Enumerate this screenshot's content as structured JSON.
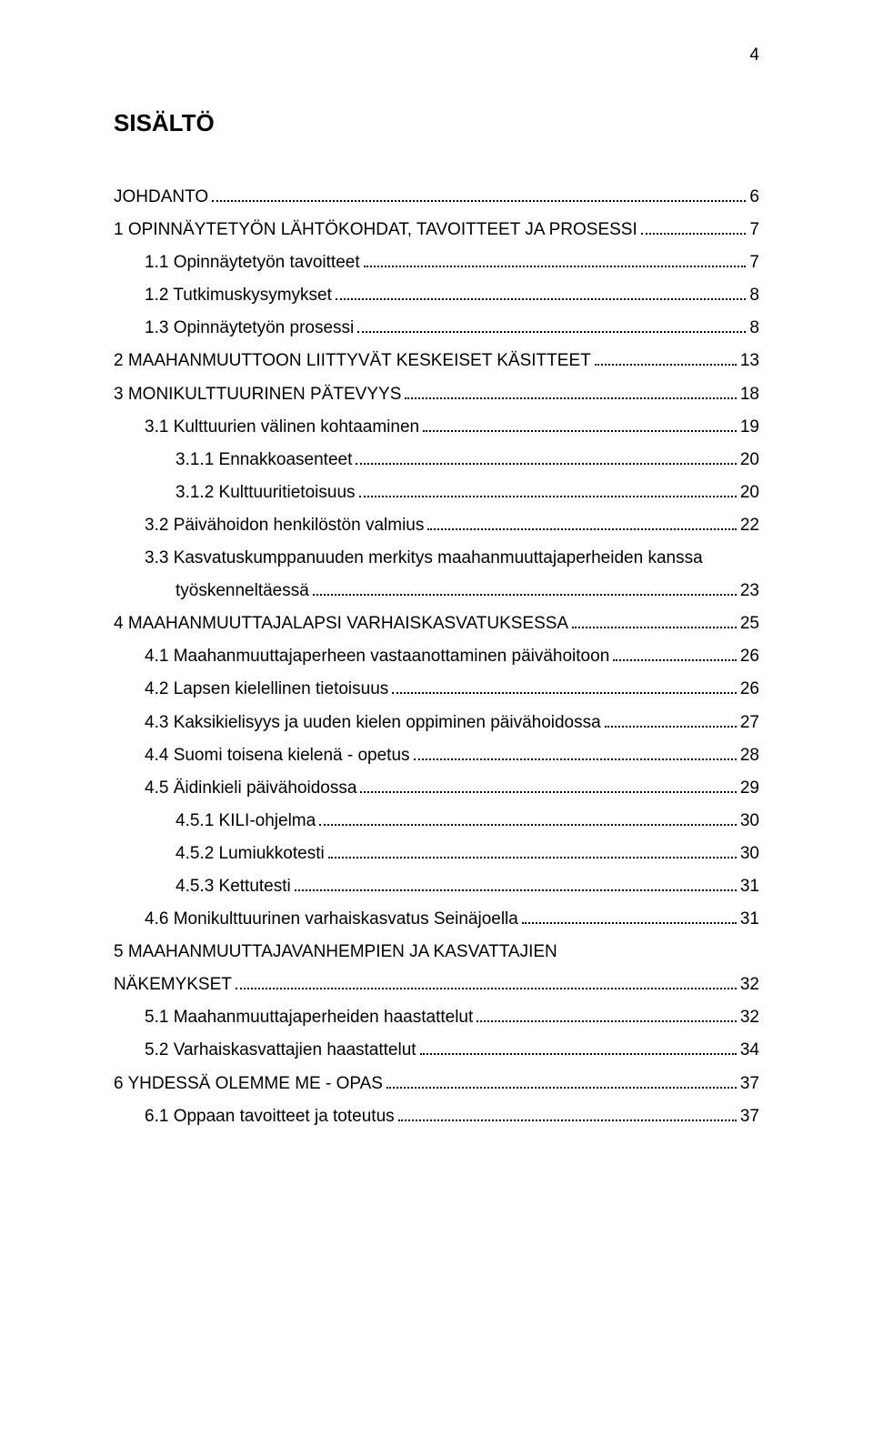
{
  "page_number": "4",
  "heading": "SISÄLTÖ",
  "font": {
    "family": "Arial",
    "body_size_pt": 14,
    "heading_size_pt": 20,
    "color": "#000000"
  },
  "colors": {
    "background": "#ffffff",
    "text": "#000000",
    "leader": "#000000"
  },
  "entries": [
    {
      "level": 0,
      "label": "JOHDANTO",
      "page": "6"
    },
    {
      "level": 0,
      "label": "1  OPINNÄYTETYÖN LÄHTÖKOHDAT, TAVOITTEET JA PROSESSI",
      "page": "7"
    },
    {
      "level": 1,
      "label": "1.1  Opinnäytetyön tavoitteet",
      "page": "7"
    },
    {
      "level": 1,
      "label": "1.2  Tutkimuskysymykset",
      "page": "8"
    },
    {
      "level": 1,
      "label": "1.3  Opinnäytetyön prosessi",
      "page": "8"
    },
    {
      "level": 0,
      "label": "2  MAAHANMUUTTOON LIITTYVÄT KESKEISET KÄSITTEET",
      "page": "13"
    },
    {
      "level": 0,
      "label": "3  MONIKULTTUURINEN PÄTEVYYS",
      "page": "18"
    },
    {
      "level": 1,
      "label": "3.1  Kulttuurien välinen kohtaaminen",
      "page": "19"
    },
    {
      "level": 2,
      "label": "3.1.1  Ennakkoasenteet",
      "page": "20"
    },
    {
      "level": 2,
      "label": "3.1.2  Kulttuuritietoisuus",
      "page": "20"
    },
    {
      "level": 1,
      "label": "3.2  Päivähoidon henkilöstön valmius",
      "page": "22"
    },
    {
      "level": 1,
      "label": "3.3  Kasvatuskumppanuuden   merkitys   maahanmuuttajaperheiden   kanssa",
      "continuation": "työskenneltäessä",
      "page": "23"
    },
    {
      "level": 0,
      "label": "4  MAAHANMUUTTAJALAPSI VARHAISKASVATUKSESSA",
      "page": "25"
    },
    {
      "level": 1,
      "label": "4.1  Maahanmuuttajaperheen vastaanottaminen päivähoitoon",
      "page": "26"
    },
    {
      "level": 1,
      "label": "4.2  Lapsen kielellinen tietoisuus",
      "page": "26"
    },
    {
      "level": 1,
      "label": "4.3  Kaksikielisyys ja uuden kielen oppiminen päivähoidossa",
      "page": "27"
    },
    {
      "level": 1,
      "label": "4.4  Suomi toisena kielenä - opetus",
      "page": "28"
    },
    {
      "level": 1,
      "label": "4.5  Äidinkieli päivähoidossa",
      "page": "29"
    },
    {
      "level": 2,
      "label": "4.5.1  KILI-ohjelma",
      "page": "30"
    },
    {
      "level": 2,
      "label": "4.5.2  Lumiukkotesti",
      "page": "30"
    },
    {
      "level": 2,
      "label": "4.5.3  Kettutesti",
      "page": "31"
    },
    {
      "level": 1,
      "label": "4.6  Monikulttuurinen varhaiskasvatus Seinäjoella",
      "page": "31"
    },
    {
      "level": 0,
      "label": "5  MAAHANMUUTTAJAVANHEMPIEN JA KASVATTAJIEN",
      "continuation_level0": "NÄKEMYKSET",
      "page": "32"
    },
    {
      "level": 1,
      "label": "5.1  Maahanmuuttajaperheiden haastattelut",
      "page": "32"
    },
    {
      "level": 1,
      "label": "5.2  Varhaiskasvattajien haastattelut",
      "page": "34"
    },
    {
      "level": 0,
      "label": "6  YHDESSÄ OLEMME ME - OPAS",
      "page": "37"
    },
    {
      "level": 1,
      "label": "6.1  Oppaan tavoitteet ja toteutus",
      "page": "37"
    }
  ]
}
